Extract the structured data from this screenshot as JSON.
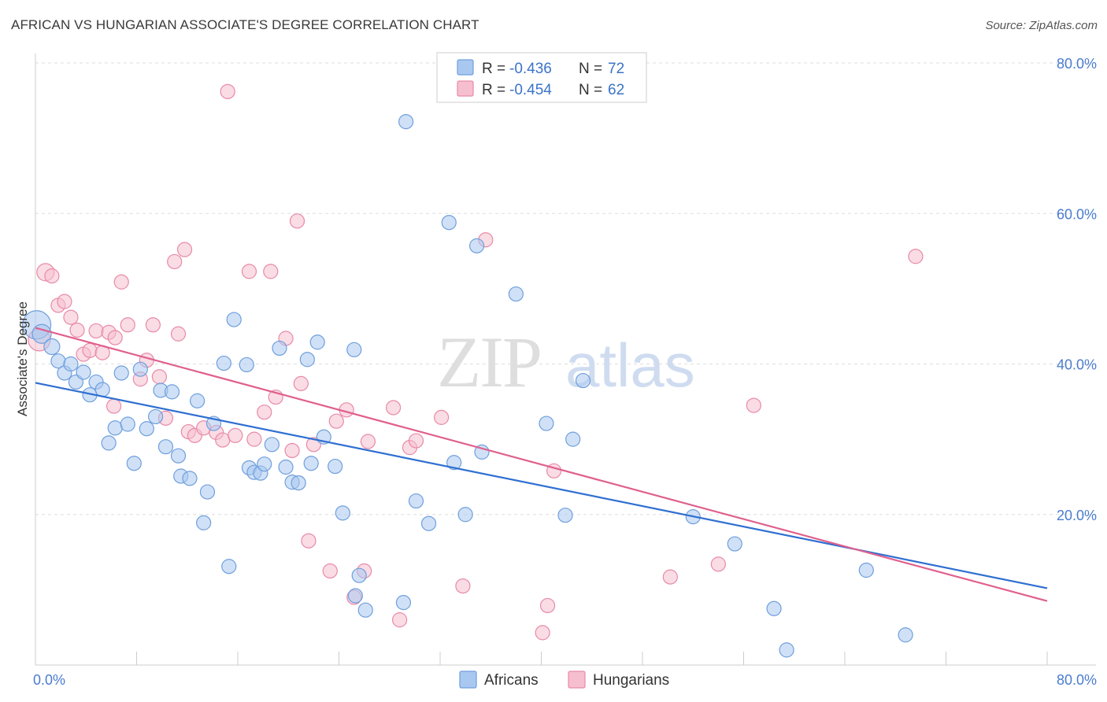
{
  "title": "AFRICAN VS HUNGARIAN ASSOCIATE'S DEGREE CORRELATION CHART",
  "source": "Source: ZipAtlas.com",
  "watermark": {
    "zip": "ZIP",
    "atlas": "atlas"
  },
  "legend": {
    "rows": [
      {
        "r_label": "R =",
        "r_value": "-0.436",
        "n_label": "N =",
        "n_value": "72",
        "color": "#a9c8f0",
        "stroke": "#6f9fdc"
      },
      {
        "r_label": "R =",
        "r_value": "-0.454",
        "n_label": "N =",
        "n_value": "62",
        "color": "#f6bfd0",
        "stroke": "#e88aa8"
      }
    ]
  },
  "bottom_legend": [
    {
      "label": "Africans",
      "color": "#a9c8f0",
      "stroke": "#6f9fdc"
    },
    {
      "label": "Hungarians",
      "color": "#f6bfd0",
      "stroke": "#e88aa8"
    }
  ],
  "chart_data": {
    "type": "scatter",
    "title": "AFRICAN VS HUNGARIAN ASSOCIATE'S DEGREE CORRELATION CHART",
    "xlabel": "",
    "ylabel": "Associate's Degree",
    "xlim": [
      0,
      80
    ],
    "ylim": [
      0,
      80
    ],
    "x_tick_labels": [
      {
        "value": 0,
        "label": "0.0%"
      },
      {
        "value": 80,
        "label": "80.0%"
      }
    ],
    "y_tick_labels": [
      {
        "value": 20,
        "label": "20.0%"
      },
      {
        "value": 40,
        "label": "40.0%"
      },
      {
        "value": 60,
        "label": "60.0%"
      },
      {
        "value": 80,
        "label": "80.0%"
      }
    ],
    "grid": "horizontal dashed",
    "series": [
      {
        "name": "Africans",
        "color": "#6f9fdc",
        "fill": "#a9c8f0",
        "trend": [
          [
            0,
            37.5
          ],
          [
            80,
            10.2
          ]
        ],
        "points": [
          [
            0.1,
            45.2,
            18
          ],
          [
            0.5,
            44.0,
            12
          ],
          [
            1.3,
            42.3,
            10
          ],
          [
            1.8,
            40.4,
            9
          ],
          [
            2.3,
            38.8,
            9
          ],
          [
            2.8,
            40.0,
            9
          ],
          [
            3.2,
            37.6,
            9
          ],
          [
            3.8,
            38.9,
            9
          ],
          [
            4.3,
            35.9,
            9
          ],
          [
            4.8,
            37.6,
            9
          ],
          [
            5.3,
            36.6,
            9
          ],
          [
            5.8,
            29.5,
            9
          ],
          [
            6.3,
            31.5,
            9
          ],
          [
            6.8,
            38.8,
            9
          ],
          [
            7.3,
            32.0,
            9
          ],
          [
            7.8,
            26.8,
            9
          ],
          [
            8.3,
            39.3,
            9
          ],
          [
            8.8,
            31.4,
            9
          ],
          [
            9.5,
            33.0,
            9
          ],
          [
            9.9,
            36.5,
            9
          ],
          [
            10.3,
            29.0,
            9
          ],
          [
            10.8,
            36.3,
            9
          ],
          [
            11.3,
            27.8,
            9
          ],
          [
            11.5,
            25.1,
            9
          ],
          [
            12.2,
            24.8,
            9
          ],
          [
            12.8,
            35.1,
            9
          ],
          [
            13.3,
            18.9,
            9
          ],
          [
            13.6,
            23.0,
            9
          ],
          [
            14.1,
            32.1,
            9
          ],
          [
            14.9,
            40.1,
            9
          ],
          [
            15.3,
            13.1,
            9
          ],
          [
            15.7,
            45.9,
            9
          ],
          [
            16.7,
            39.9,
            9
          ],
          [
            16.9,
            26.2,
            9
          ],
          [
            17.3,
            25.6,
            9
          ],
          [
            17.8,
            25.5,
            9
          ],
          [
            18.1,
            26.7,
            9
          ],
          [
            18.7,
            29.3,
            9
          ],
          [
            19.3,
            42.1,
            9
          ],
          [
            19.8,
            26.3,
            9
          ],
          [
            20.3,
            24.3,
            9
          ],
          [
            20.8,
            24.2,
            9
          ],
          [
            21.5,
            40.6,
            9
          ],
          [
            21.8,
            26.8,
            9
          ],
          [
            22.3,
            42.9,
            9
          ],
          [
            22.8,
            30.3,
            9
          ],
          [
            23.7,
            26.4,
            9
          ],
          [
            24.3,
            20.2,
            9
          ],
          [
            25.3,
            9.2,
            9
          ],
          [
            25.6,
            11.9,
            9
          ],
          [
            25.2,
            41.9,
            9
          ],
          [
            26.1,
            7.3,
            9
          ],
          [
            29.1,
            8.3,
            9
          ],
          [
            29.3,
            72.2,
            9
          ],
          [
            30.1,
            21.8,
            9
          ],
          [
            31.1,
            18.8,
            9
          ],
          [
            32.7,
            58.8,
            9
          ],
          [
            33.1,
            26.9,
            9
          ],
          [
            34.0,
            20.0,
            9
          ],
          [
            34.9,
            55.7,
            9
          ],
          [
            35.3,
            28.3,
            9
          ],
          [
            38.0,
            49.3,
            9
          ],
          [
            40.4,
            32.1,
            9
          ],
          [
            41.9,
            19.9,
            9
          ],
          [
            42.5,
            30.0,
            9
          ],
          [
            43.3,
            37.8,
            9
          ],
          [
            52.0,
            19.7,
            9
          ],
          [
            55.3,
            16.1,
            9
          ],
          [
            58.4,
            7.5,
            9
          ],
          [
            59.4,
            2.0,
            9
          ],
          [
            65.7,
            12.6,
            9
          ],
          [
            68.8,
            4.0,
            9
          ]
        ]
      },
      {
        "name": "Hungarians",
        "color": "#e88aa8",
        "fill": "#f6bfd0",
        "trend": [
          [
            0,
            44.8
          ],
          [
            80,
            8.5
          ]
        ],
        "points": [
          [
            0.3,
            43.2,
            14
          ],
          [
            0.8,
            52.2,
            11
          ],
          [
            1.3,
            51.7,
            9
          ],
          [
            1.8,
            47.8,
            9
          ],
          [
            2.3,
            48.3,
            9
          ],
          [
            2.8,
            46.2,
            9
          ],
          [
            3.3,
            44.5,
            9
          ],
          [
            3.8,
            41.3,
            9
          ],
          [
            4.3,
            41.8,
            9
          ],
          [
            4.8,
            44.4,
            9
          ],
          [
            5.3,
            41.5,
            9
          ],
          [
            5.8,
            44.2,
            9
          ],
          [
            6.2,
            34.4,
            9
          ],
          [
            6.3,
            43.5,
            9
          ],
          [
            6.8,
            50.9,
            9
          ],
          [
            7.3,
            45.2,
            9
          ],
          [
            8.3,
            38.0,
            9
          ],
          [
            8.8,
            40.5,
            9
          ],
          [
            9.3,
            45.2,
            9
          ],
          [
            9.8,
            38.3,
            9
          ],
          [
            10.3,
            32.8,
            9
          ],
          [
            11.0,
            53.6,
            9
          ],
          [
            11.3,
            44.0,
            9
          ],
          [
            11.8,
            55.2,
            9
          ],
          [
            12.1,
            31.0,
            9
          ],
          [
            12.6,
            30.5,
            9
          ],
          [
            13.3,
            31.5,
            9
          ],
          [
            14.3,
            30.9,
            9
          ],
          [
            14.8,
            29.9,
            9
          ],
          [
            15.2,
            76.2,
            9
          ],
          [
            15.8,
            30.5,
            9
          ],
          [
            16.9,
            52.3,
            9
          ],
          [
            17.3,
            30.0,
            9
          ],
          [
            18.1,
            33.6,
            9
          ],
          [
            18.6,
            52.3,
            9
          ],
          [
            19.0,
            35.6,
            9
          ],
          [
            19.8,
            43.4,
            9
          ],
          [
            20.3,
            28.5,
            9
          ],
          [
            20.7,
            59.0,
            9
          ],
          [
            21.0,
            37.4,
            9
          ],
          [
            21.6,
            16.5,
            9
          ],
          [
            22.0,
            29.3,
            9
          ],
          [
            23.3,
            12.5,
            9
          ],
          [
            23.8,
            32.4,
            9
          ],
          [
            24.6,
            33.9,
            9
          ],
          [
            25.2,
            9.0,
            9
          ],
          [
            26.0,
            12.5,
            9
          ],
          [
            26.3,
            29.7,
            9
          ],
          [
            28.3,
            34.2,
            9
          ],
          [
            28.8,
            6.0,
            9
          ],
          [
            29.6,
            28.9,
            9
          ],
          [
            30.1,
            29.8,
            9
          ],
          [
            32.1,
            32.9,
            9
          ],
          [
            33.8,
            10.5,
            9
          ],
          [
            35.6,
            56.5,
            9
          ],
          [
            40.5,
            7.9,
            9
          ],
          [
            40.1,
            4.3,
            9
          ],
          [
            41.0,
            25.8,
            9
          ],
          [
            50.2,
            11.7,
            9
          ],
          [
            54.0,
            13.4,
            9
          ],
          [
            56.8,
            34.5,
            9
          ],
          [
            69.6,
            54.3,
            9
          ]
        ]
      }
    ]
  }
}
